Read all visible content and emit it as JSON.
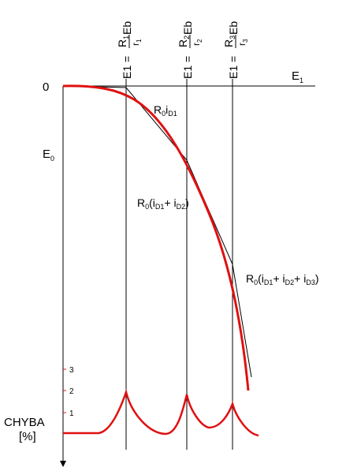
{
  "labels": {
    "origin": "0",
    "e1_axis": "E",
    "e1_axis_sub": "1",
    "e0_axis": "E",
    "e0_axis_sub": "0",
    "chyba": "CHYBA",
    "chyba_unit": "[%]"
  },
  "breakpoints": [
    {
      "prefix": "E1 = ",
      "num": "R",
      "num_sub": "1",
      "den": "r",
      "den_sub": "1",
      "suffix": " Eb"
    },
    {
      "prefix": "E1 = ",
      "num": "R",
      "num_sub": "2",
      "den": "r",
      "den_sub": "2",
      "suffix": " Eb"
    },
    {
      "prefix": "E1 = ",
      "num": "R",
      "num_sub": "3",
      "den": "r",
      "den_sub": "3",
      "suffix": " Eb"
    }
  ],
  "segments": [
    {
      "base": "R",
      "base_sub": "0",
      "parts": [
        {
          "t": "i"
        },
        {
          "t": "D1",
          "sub": true
        }
      ]
    },
    {
      "base": "R",
      "base_sub": "0",
      "parts": [
        {
          "t": "(i"
        },
        {
          "t": "D1",
          "sub": true
        },
        {
          "t": "+ i"
        },
        {
          "t": "D2",
          "sub": true
        },
        {
          "t": ")"
        }
      ]
    },
    {
      "base": "R",
      "base_sub": "0",
      "parts": [
        {
          "t": "(i"
        },
        {
          "t": "D1",
          "sub": true
        },
        {
          "t": "+ i"
        },
        {
          "t": "D2",
          "sub": true
        },
        {
          "t": "+ i"
        },
        {
          "t": "D3",
          "sub": true
        },
        {
          "t": ")"
        }
      ]
    }
  ],
  "error_ticks": [
    "1",
    "2",
    "3"
  ],
  "colors": {
    "curve": "#e01010",
    "lines": "#000000",
    "error_ticks": "#e01010"
  }
}
